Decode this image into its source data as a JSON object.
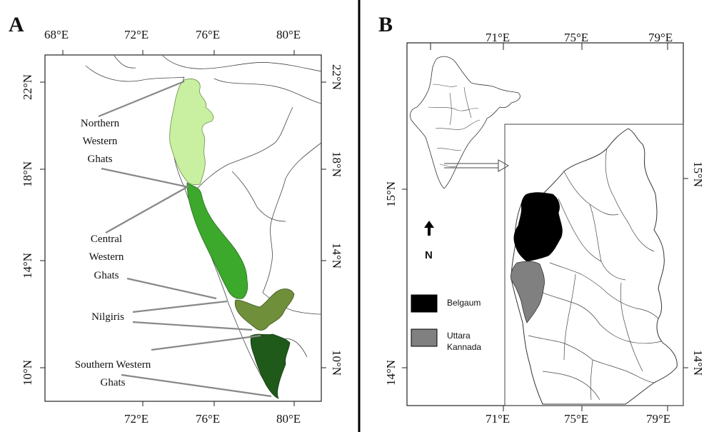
{
  "panel_a": {
    "letter": "A",
    "top_ticks": [
      "68°E",
      "72°E",
      "76°E",
      "80°E"
    ],
    "bottom_ticks": [
      "72°E",
      "76°E",
      "80°E"
    ],
    "left_ticks": [
      "22°N",
      "18°N",
      "14°N",
      "10°N"
    ],
    "right_ticks": [
      "22°N",
      "18°N",
      "14°N",
      "10°N"
    ],
    "regions": [
      {
        "lines": [
          "Northern",
          "Western",
          "Ghats"
        ],
        "color": "#c8f0a0"
      },
      {
        "lines": [
          "Central",
          "Western",
          "Ghats"
        ],
        "color": "#3ca82c"
      },
      {
        "lines": [
          "Nilgiris"
        ],
        "color": "#6f8f3a"
      },
      {
        "lines": [
          "Southern Western",
          "Ghats"
        ],
        "color": "#1f5a1a"
      }
    ]
  },
  "panel_b": {
    "letter": "B",
    "top_ticks": [
      "71°E",
      "75°E",
      "79°E"
    ],
    "bottom_ticks": [
      "71°E",
      "75°E",
      "79°E"
    ],
    "left_ticks": [
      "15°N",
      "14°N"
    ],
    "right_ticks": [
      "15°N",
      "14°N"
    ],
    "north_label": "N",
    "legend": [
      {
        "label": [
          "Belgaum"
        ],
        "color": "#000000"
      },
      {
        "label": [
          "Uttara",
          "Kannada"
        ],
        "color": "#808080"
      }
    ]
  }
}
